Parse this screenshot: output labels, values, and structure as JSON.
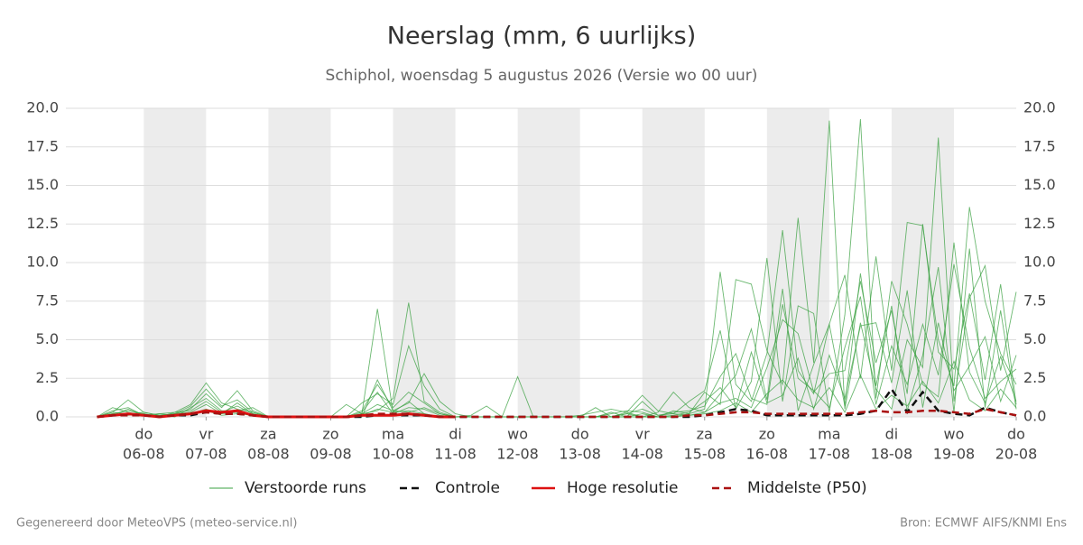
{
  "chart_data": {
    "type": "line",
    "title": "Neerslag (mm, 6 uurlijks)",
    "subtitle": "Schiphol, woensdag  5 augustus 2026 (Versie wo 00 uur)",
    "footer_left": "Gegenereerd door MeteoVPS (meteo-service.nl)",
    "footer_right": "Bron: ECMWF AIFS/KNMI Ens",
    "grid": true,
    "legend": "bottom",
    "xlim": [
      "04-08 18:00",
      "20-08 00:00"
    ],
    "xticks": [
      {
        "value": "06-08 00:00",
        "weekday": "do",
        "label": "06-08"
      },
      {
        "value": "07-08 00:00",
        "weekday": "vr",
        "label": "07-08"
      },
      {
        "value": "08-08 00:00",
        "weekday": "za",
        "label": "08-08"
      },
      {
        "value": "09-08 00:00",
        "weekday": "zo",
        "label": "09-08"
      },
      {
        "value": "10-08 00:00",
        "weekday": "ma",
        "label": "10-08"
      },
      {
        "value": "11-08 00:00",
        "weekday": "di",
        "label": "11-08"
      },
      {
        "value": "12-08 00:00",
        "weekday": "wo",
        "label": "12-08"
      },
      {
        "value": "13-08 00:00",
        "weekday": "do",
        "label": "13-08"
      },
      {
        "value": "14-08 00:00",
        "weekday": "vr",
        "label": "14-08"
      },
      {
        "value": "15-08 00:00",
        "weekday": "za",
        "label": "15-08"
      },
      {
        "value": "16-08 00:00",
        "weekday": "zo",
        "label": "16-08"
      },
      {
        "value": "17-08 00:00",
        "weekday": "ma",
        "label": "17-08"
      },
      {
        "value": "18-08 00:00",
        "weekday": "di",
        "label": "18-08"
      },
      {
        "value": "19-08 00:00",
        "weekday": "wo",
        "label": "19-08"
      },
      {
        "value": "20-08 00:00",
        "weekday": "do",
        "label": "20-08"
      }
    ],
    "ylim": [
      0,
      20
    ],
    "yticks": [
      {
        "value": 0,
        "label": "0.0"
      },
      {
        "value": 2.5,
        "label": "2.5"
      },
      {
        "value": 5,
        "label": "5.0"
      },
      {
        "value": 7.5,
        "label": "7.5"
      },
      {
        "value": 10,
        "label": "10.0"
      },
      {
        "value": 12.5,
        "label": "12.5"
      },
      {
        "value": 15,
        "label": "15.0"
      },
      {
        "value": 17.5,
        "label": "17.5"
      },
      {
        "value": 20,
        "label": "20.0"
      }
    ],
    "x": [
      "05-08 06:00",
      "05-08 12:00",
      "05-08 18:00",
      "06-08 00:00",
      "06-08 06:00",
      "06-08 12:00",
      "06-08 18:00",
      "07-08 00:00",
      "07-08 06:00",
      "07-08 12:00",
      "07-08 18:00",
      "08-08 00:00",
      "08-08 06:00",
      "08-08 12:00",
      "08-08 18:00",
      "09-08 00:00",
      "09-08 06:00",
      "09-08 12:00",
      "09-08 18:00",
      "10-08 00:00",
      "10-08 06:00",
      "10-08 12:00",
      "10-08 18:00",
      "11-08 00:00",
      "11-08 06:00",
      "11-08 12:00",
      "11-08 18:00",
      "12-08 00:00",
      "12-08 06:00",
      "12-08 12:00",
      "12-08 18:00",
      "13-08 00:00",
      "13-08 06:00",
      "13-08 12:00",
      "13-08 18:00",
      "14-08 00:00",
      "14-08 06:00",
      "14-08 12:00",
      "14-08 18:00",
      "15-08 00:00",
      "15-08 06:00",
      "15-08 12:00",
      "15-08 18:00",
      "16-08 00:00",
      "16-08 06:00",
      "16-08 12:00",
      "16-08 18:00",
      "17-08 00:00",
      "17-08 06:00",
      "17-08 12:00",
      "17-08 18:00",
      "18-08 00:00",
      "18-08 06:00",
      "18-08 12:00",
      "18-08 18:00",
      "19-08 00:00",
      "19-08 06:00",
      "19-08 12:00",
      "19-08 18:00",
      "20-08 00:00"
    ],
    "ensemble": {
      "name": "Verstoorde runs",
      "color": "#3aa040",
      "members": [
        [
          0,
          0.6,
          0.3,
          0.1,
          0.2,
          0.3,
          0.8,
          2.2,
          0.9,
          0.5,
          0.3,
          0,
          0,
          0,
          0,
          0,
          0,
          0.2,
          7.0,
          0.3,
          1.0,
          0.2,
          0,
          0,
          0,
          0,
          0,
          0,
          0,
          0,
          0,
          0,
          0,
          0,
          0,
          0,
          0,
          0,
          0.2,
          0.5,
          9.4,
          2.1,
          1.0,
          4.1,
          12.1,
          3.0,
          1.5,
          6.0,
          9.2,
          2.5,
          10.4,
          3.0,
          12.6,
          12.4,
          5.0,
          2.0,
          13.6,
          7.5,
          4.1,
          2.1
        ],
        [
          0,
          0.3,
          1.1,
          0.3,
          0.1,
          0.2,
          0.5,
          1.5,
          0.6,
          1.7,
          0.4,
          0,
          0,
          0,
          0,
          0,
          0.8,
          0.2,
          0.4,
          1.2,
          7.4,
          1.0,
          0.3,
          0,
          0,
          0,
          0,
          2.6,
          0,
          0,
          0,
          0,
          0.6,
          0,
          0.3,
          0,
          0,
          0.4,
          0.2,
          1.6,
          0.8,
          8.9,
          8.6,
          4.3,
          2.1,
          12.9,
          3.5,
          19.2,
          0.5,
          6.1,
          1.8,
          0.5,
          5.0,
          3.2,
          18.1,
          1.0,
          7.7,
          9.8,
          3.0,
          8.1
        ],
        [
          0,
          0.2,
          0.4,
          0.2,
          0,
          0.3,
          0.4,
          1.0,
          0.3,
          0.7,
          0.2,
          0,
          0,
          0,
          0,
          0,
          0,
          0.9,
          1.5,
          0.8,
          4.6,
          2.0,
          0.5,
          0,
          0.1,
          0.7,
          0,
          0,
          0,
          0,
          0,
          0.1,
          0.3,
          0.5,
          0.3,
          1.4,
          0.4,
          0.2,
          1.0,
          1.7,
          5.6,
          0.5,
          2.3,
          10.3,
          1.0,
          7.2,
          6.7,
          0.3,
          6.6,
          19.3,
          1.2,
          8.8,
          6.0,
          2.1,
          1.3,
          11.3,
          2.9,
          0.9,
          3.9,
          1.0
        ],
        [
          0,
          0.1,
          0.5,
          0.1,
          0.1,
          0,
          0.6,
          1.2,
          0.4,
          0.4,
          0.6,
          0,
          0,
          0,
          0,
          0,
          0,
          0,
          2.4,
          0.4,
          0.9,
          2.8,
          1.0,
          0.2,
          0,
          0,
          0,
          0,
          0,
          0,
          0,
          0,
          0,
          0,
          0.2,
          0,
          0.3,
          1.6,
          0.6,
          0.3,
          1.5,
          2.7,
          5.7,
          1.1,
          8.3,
          0.4,
          3.4,
          6.0,
          0.7,
          9.3,
          2.0,
          7.2,
          0.4,
          4.0,
          9.7,
          0.3,
          10.9,
          0.6,
          6.9,
          0.5
        ],
        [
          0,
          0.2,
          0.1,
          0.2,
          0,
          0.2,
          0.3,
          0.8,
          0.2,
          0.3,
          0.1,
          0,
          0,
          0,
          0,
          0,
          0,
          0.3,
          1.6,
          0.2,
          0.6,
          0.5,
          0.1,
          0,
          0,
          0,
          0,
          0,
          0,
          0,
          0,
          0,
          0,
          0.3,
          0,
          1.0,
          0.1,
          0.2,
          0.1,
          0.3,
          0.9,
          1.2,
          0.6,
          3.2,
          6.3,
          5.4,
          1.6,
          2.8,
          3.0,
          8.8,
          3.5,
          6.9,
          1.5,
          12.5,
          4.2,
          3.1,
          8.0,
          2.4,
          8.6,
          0.8
        ],
        [
          0,
          0.4,
          0.6,
          0.1,
          0.2,
          0.1,
          0.2,
          0.5,
          0.2,
          0.9,
          0.2,
          0,
          0,
          0,
          0,
          0,
          0,
          0.2,
          0.8,
          0.4,
          0.3,
          0.6,
          0.2,
          0,
          0,
          0,
          0,
          0,
          0,
          0,
          0,
          0,
          0,
          0,
          0.2,
          0.5,
          0.1,
          0.3,
          0.4,
          0.7,
          2.6,
          4.1,
          1.2,
          0.8,
          7.3,
          2.5,
          1.7,
          0.6,
          4.5,
          7.8,
          0.8,
          4.6,
          2.1,
          6.0,
          2.7,
          9.9,
          4.5,
          1.2,
          2.3,
          3.1
        ],
        [
          0,
          0.1,
          0.2,
          0.1,
          0,
          0.1,
          0.2,
          0.4,
          0.1,
          0.2,
          0.1,
          0,
          0,
          0,
          0,
          0,
          0,
          0.1,
          0.5,
          0.3,
          0.4,
          0.2,
          0,
          0,
          0,
          0,
          0,
          0,
          0,
          0,
          0,
          0,
          0,
          0,
          0,
          0.2,
          0,
          0,
          0.1,
          0.2,
          0.4,
          0.9,
          0.3,
          1.5,
          2.4,
          1.1,
          0.6,
          1.9,
          0.3,
          2.7,
          0.5,
          1.4,
          0.7,
          2.3,
          0.9,
          3.6,
          1.1,
          0.4,
          1.8,
          0.6
        ],
        [
          0,
          0.3,
          0.2,
          0.3,
          0.1,
          0.2,
          0.7,
          1.8,
          0.7,
          1.1,
          0.3,
          0,
          0,
          0,
          0,
          0,
          0,
          0.4,
          2.1,
          0.6,
          1.6,
          0.9,
          0.2,
          0,
          0,
          0,
          0,
          0,
          0,
          0,
          0,
          0,
          0,
          0.2,
          0.4,
          0.3,
          0,
          0.1,
          0.3,
          1.0,
          1.9,
          0.6,
          4.2,
          0.9,
          1.4,
          3.8,
          0.5,
          4.0,
          1.2,
          5.9,
          6.1,
          2.2,
          8.2,
          0.6,
          6.1,
          1.7,
          3.3,
          5.2,
          1.0,
          4.0
        ]
      ]
    },
    "series": [
      {
        "name": "Controle",
        "color": "#111111",
        "dash": true,
        "values": [
          0,
          0.1,
          0.2,
          0.1,
          0,
          0.1,
          0.1,
          0.3,
          0.2,
          0.2,
          0.1,
          0,
          0,
          0,
          0,
          0,
          0,
          0,
          0.1,
          0.1,
          0.1,
          0.1,
          0,
          0,
          0,
          0,
          0,
          0,
          0,
          0,
          0,
          0,
          0,
          0,
          0,
          0,
          0,
          0,
          0,
          0.1,
          0.3,
          0.5,
          0.4,
          0.1,
          0.1,
          0.1,
          0.1,
          0.1,
          0.1,
          0.2,
          0.4,
          1.8,
          0.3,
          1.6,
          0.4,
          0.2,
          0.1,
          0.6,
          0.3,
          0.1
        ]
      },
      {
        "name": "Hoge resolutie",
        "color": "#dd1111",
        "dash": false,
        "values": [
          0,
          0.1,
          0.2,
          0.1,
          0,
          0.1,
          0.2,
          0.4,
          0.3,
          0.4,
          0.1,
          0,
          0,
          0,
          0,
          0,
          0,
          0.1,
          0.1,
          0.1,
          0.2,
          0.1,
          0,
          0,
          null,
          null,
          null,
          null,
          null,
          null,
          null,
          null,
          null,
          null,
          null,
          null,
          null,
          null,
          null,
          null,
          null,
          null,
          null,
          null,
          null,
          null,
          null,
          null,
          null,
          null,
          null,
          null,
          null,
          null,
          null,
          null,
          null,
          null,
          null,
          null
        ]
      },
      {
        "name": "Middelste (P50)",
        "color": "#aa1111",
        "dash": true,
        "values": [
          0,
          0.1,
          0.1,
          0.1,
          0,
          0.1,
          0.2,
          0.3,
          0.2,
          0.2,
          0.1,
          0,
          0,
          0,
          0,
          0,
          0,
          0.1,
          0.2,
          0.2,
          0.2,
          0.1,
          0,
          0,
          0,
          0,
          0,
          0,
          0,
          0,
          0,
          0,
          0,
          0,
          0,
          0,
          0,
          0,
          0.1,
          0.1,
          0.2,
          0.3,
          0.3,
          0.2,
          0.2,
          0.2,
          0.2,
          0.2,
          0.2,
          0.3,
          0.4,
          0.3,
          0.3,
          0.4,
          0.4,
          0.3,
          0.2,
          0.5,
          0.3,
          0.1
        ]
      }
    ]
  }
}
